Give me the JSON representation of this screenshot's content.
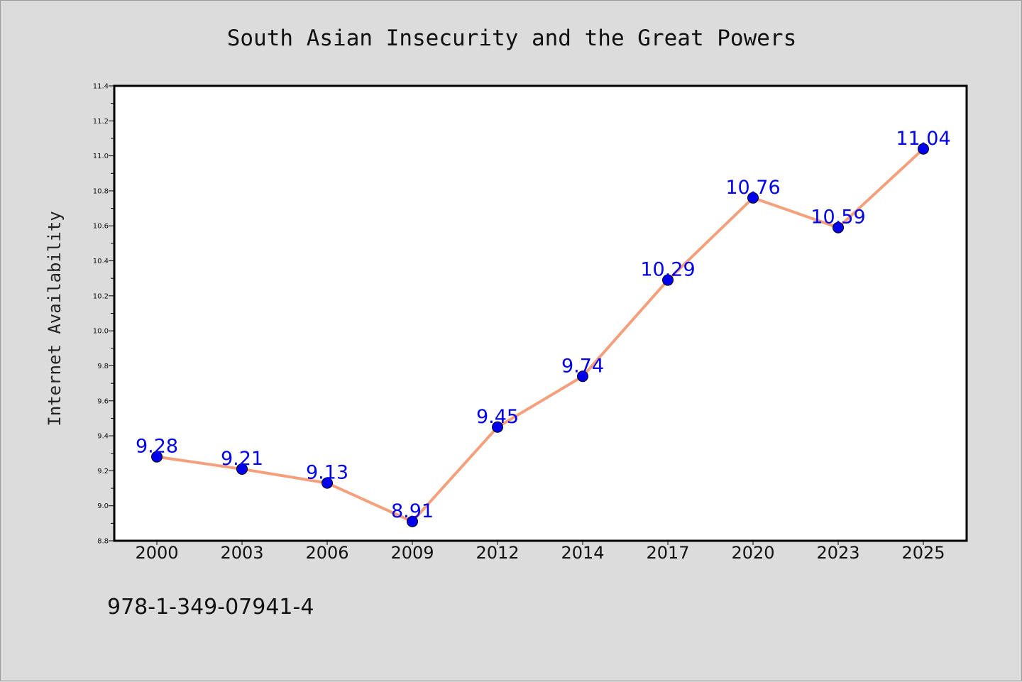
{
  "chart_data": {
    "type": "line",
    "title": "South Asian Insecurity and the Great Powers",
    "xlabel": "",
    "ylabel": "Internet Availability",
    "categories": [
      "2000",
      "2003",
      "2006",
      "2009",
      "2012",
      "2014",
      "2017",
      "2020",
      "2023",
      "2025"
    ],
    "series": [
      {
        "values": [
          9.28,
          9.21,
          9.13,
          8.91,
          9.45,
          9.74,
          10.29,
          10.76,
          10.59,
          11.04
        ]
      }
    ],
    "data_labels": [
      "9.28",
      "9.21",
      "9.13",
      "8.91",
      "9.45",
      "9.74",
      "10.29",
      "10.76",
      "10.59",
      "11.04"
    ],
    "ylim": [
      8.8,
      11.4
    ],
    "yticks": [
      "8.8",
      "9.0",
      "9.2",
      "9.4",
      "9.6",
      "9.8",
      "10.0",
      "10.2",
      "10.4",
      "10.6",
      "10.8",
      "11.0",
      "11.2",
      "11.4"
    ],
    "grid": false,
    "legend": "none",
    "colors": {
      "line": "#f4a07c",
      "marker": "#0000ee",
      "label": "#0000ee",
      "background": "#dcdcdc",
      "plot_background": "#ffffff"
    }
  },
  "footer": {
    "isbn": "978-1-349-07941-4"
  }
}
